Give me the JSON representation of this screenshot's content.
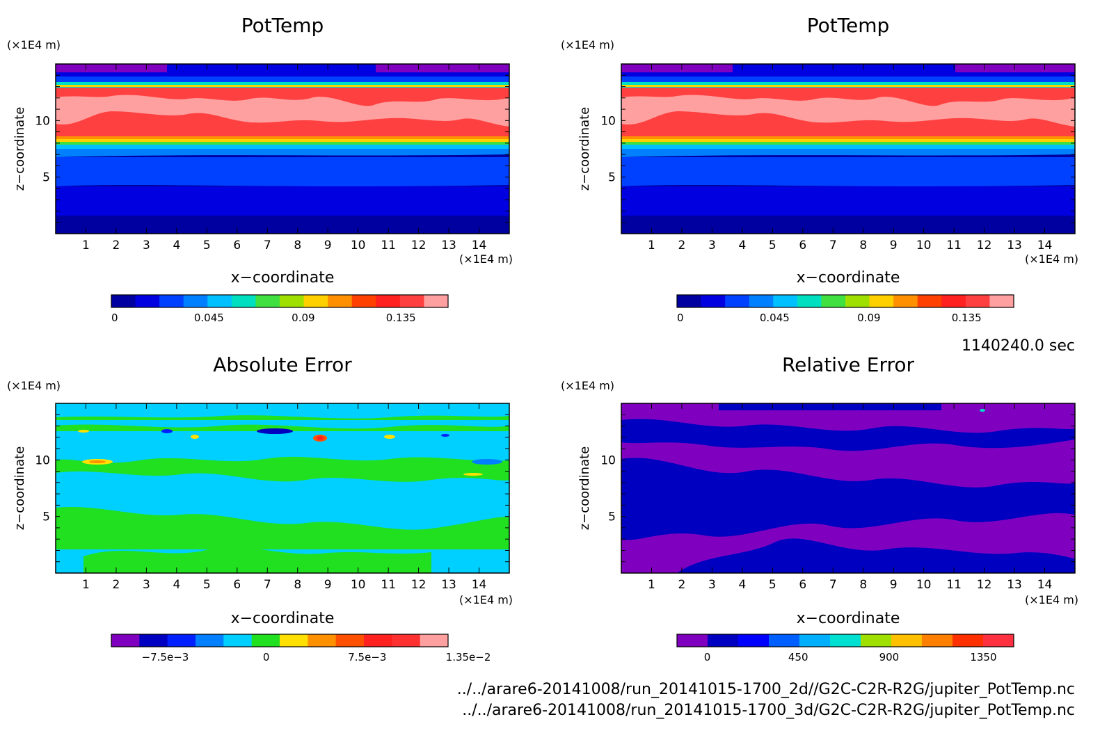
{
  "axis_labels": {
    "x_unit": "(×1E4 m)",
    "z_unit": "(×1E4 m)",
    "x_title": "x−coordinate",
    "z_title": "z−coordinate",
    "x_ticks": [
      "1",
      "2",
      "3",
      "4",
      "5",
      "6",
      "7",
      "8",
      "9",
      "10",
      "11",
      "12",
      "13",
      "14"
    ],
    "z_ticks": [
      "5",
      "10"
    ]
  },
  "time_label": "1140240.0 sec",
  "files": [
    "../../arare6-20141008/run_20141015-1700_2d//G2C-C2R-R2G/jupiter_PotTemp.nc",
    "../../arare6-20141008/run_20141015-1700_3d/G2C-C2R-R2G/jupiter_PotTemp.nc"
  ],
  "chart_data": [
    {
      "type": "heatmap",
      "title": "PotTemp",
      "xlabel": "x−coordinate",
      "ylabel": "z−coordinate",
      "xlim": [
        0,
        15
      ],
      "ylim": [
        0,
        15
      ],
      "colorbar": {
        "ticks": [
          "0",
          "0.045",
          "0.09",
          "0.135"
        ],
        "colors": [
          "#0000a0",
          "#0000e0",
          "#0040ff",
          "#0080ff",
          "#00c0ff",
          "#00e0c0",
          "#40e040",
          "#a0e000",
          "#ffd000",
          "#ff9000",
          "#ff4000",
          "#ff2020",
          "#ff4040",
          "#ffa0a0"
        ]
      }
    },
    {
      "type": "heatmap",
      "title": "PotTemp",
      "xlabel": "x−coordinate",
      "ylabel": "z−coordinate",
      "xlim": [
        0,
        15
      ],
      "ylim": [
        0,
        15
      ],
      "colorbar": {
        "ticks": [
          "0",
          "0.045",
          "0.09",
          "0.135"
        ],
        "colors": [
          "#0000a0",
          "#0000e0",
          "#0040ff",
          "#0080ff",
          "#00c0ff",
          "#00e0c0",
          "#40e040",
          "#a0e000",
          "#ffd000",
          "#ff9000",
          "#ff4000",
          "#ff2020",
          "#ff4040",
          "#ffa0a0"
        ]
      }
    },
    {
      "type": "heatmap",
      "title": "Absolute Error",
      "xlabel": "x−coordinate",
      "ylabel": "z−coordinate",
      "xlim": [
        0,
        15
      ],
      "ylim": [
        0,
        15
      ],
      "colorbar": {
        "ticks": [
          "−7.5e−3",
          "0",
          "7.5e−3",
          "1.35e−2"
        ],
        "colors": [
          "#8000c0",
          "#0000c0",
          "#0020ff",
          "#0080ff",
          "#00d0ff",
          "#20e020",
          "#ffe000",
          "#ff9000",
          "#ff5000",
          "#ff2020",
          "#ff3030",
          "#ffa0a0"
        ]
      }
    },
    {
      "type": "heatmap",
      "title": "Relative Error",
      "xlabel": "x−coordinate",
      "ylabel": "z−coordinate",
      "xlim": [
        0,
        15
      ],
      "ylim": [
        0,
        15
      ],
      "colorbar": {
        "ticks": [
          "0",
          "450",
          "900",
          "1350"
        ],
        "colors": [
          "#8000c0",
          "#0000c0",
          "#0000ff",
          "#0060ff",
          "#00b0ff",
          "#00e0d0",
          "#a0e000",
          "#ffc000",
          "#ff8000",
          "#ff3000",
          "#ff3040"
        ]
      }
    }
  ]
}
